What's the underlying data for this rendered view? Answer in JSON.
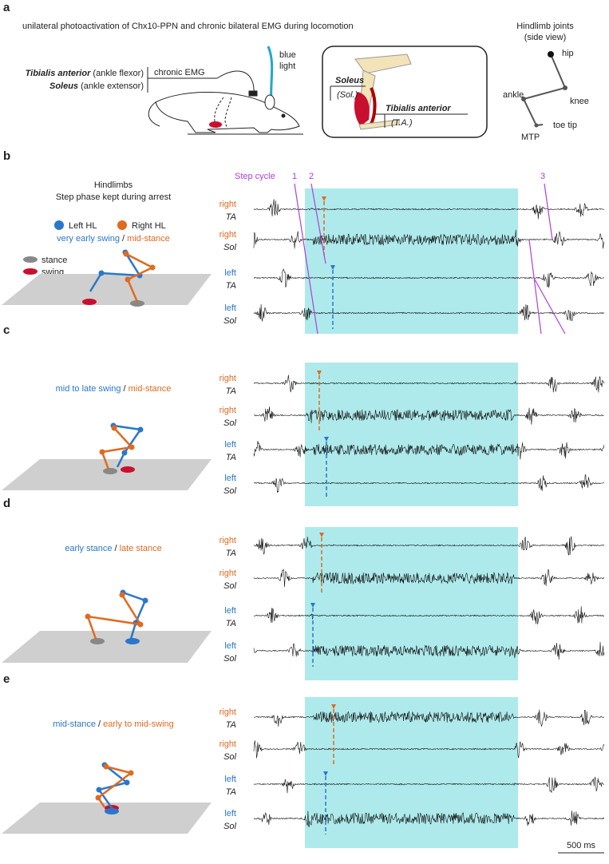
{
  "panel_a": {
    "label": "a",
    "title": "unilateral photoactivation of Chx10-PPN and chronic bilateral EMG during locomotion",
    "muscles": [
      {
        "name": "Tibialis anterior",
        "role": "(ankle flexor)"
      },
      {
        "name": "Soleus",
        "role": "(ankle extensor)"
      }
    ],
    "emg_label": "chronic EMG",
    "light_label": [
      "blue",
      "light"
    ],
    "inset": {
      "soleus": "Soleus",
      "soleus_abbr": "(Sol.)",
      "ta": "Tibialis anterior",
      "ta_abbr": "(T.A.)"
    },
    "joints": {
      "title": "Hindlimb joints",
      "subtitle": "(side view)",
      "labels": {
        "hip": "hip",
        "knee": "knee",
        "ankle": "ankle",
        "mtp": "MTP",
        "toe": "toe tip"
      }
    }
  },
  "legend": {
    "title": [
      "Hindlimbs",
      "Step phase kept during arrest"
    ],
    "left": "Left HL",
    "right": "Right HL",
    "stance": "stance",
    "swing": "swing",
    "step_cycle": "Step cycle",
    "cycles": [
      "1",
      "2",
      "3"
    ]
  },
  "panels": [
    {
      "label": "b",
      "phase_left": "very early swing",
      "separator": "/",
      "phase_right": "mid-stance",
      "channels": [
        {
          "side": "right",
          "muscle": "TA"
        },
        {
          "side": "right",
          "muscle": "Sol"
        },
        {
          "side": "left",
          "muscle": "TA"
        },
        {
          "side": "left",
          "muscle": "Sol"
        }
      ]
    },
    {
      "label": "c",
      "phase_left": "mid to late swing",
      "separator": "/",
      "phase_right": "mid-stance",
      "channels": [
        {
          "side": "right",
          "muscle": "TA"
        },
        {
          "side": "right",
          "muscle": "Sol"
        },
        {
          "side": "left",
          "muscle": "TA"
        },
        {
          "side": "left",
          "muscle": "Sol"
        }
      ]
    },
    {
      "label": "d",
      "phase_left": "early stance",
      "separator": "/",
      "phase_right": "late stance",
      "channels": [
        {
          "side": "right",
          "muscle": "TA"
        },
        {
          "side": "right",
          "muscle": "Sol"
        },
        {
          "side": "left",
          "muscle": "TA"
        },
        {
          "side": "left",
          "muscle": "Sol"
        }
      ]
    },
    {
      "label": "e",
      "phase_left": "mid-stance",
      "separator": "/",
      "phase_right": "early to mid-swing",
      "channels": [
        {
          "side": "right",
          "muscle": "TA"
        },
        {
          "side": "right",
          "muscle": "Sol"
        },
        {
          "side": "left",
          "muscle": "TA"
        },
        {
          "side": "left",
          "muscle": "Sol"
        }
      ]
    }
  ],
  "scale_bar": "500 ms"
}
